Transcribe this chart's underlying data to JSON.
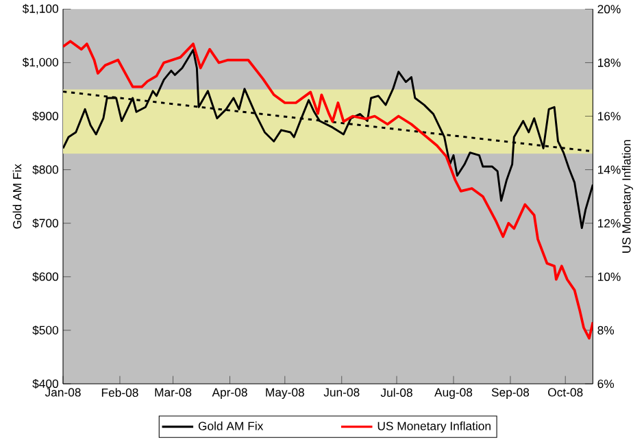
{
  "chart_data": {
    "type": "line",
    "ylabel": "Gold AM Fix",
    "y2label": "US Monetary Inflation",
    "xlim": [
      "2008-01-01",
      "2008-10-16"
    ],
    "xticks": [
      {
        "value": "2008-01-01",
        "label": "Jan-08"
      },
      {
        "value": "2008-02-01",
        "label": "Feb-08"
      },
      {
        "value": "2008-03-01",
        "label": "Mar-08"
      },
      {
        "value": "2008-04-01",
        "label": "Apr-08"
      },
      {
        "value": "2008-05-01",
        "label": "May-08"
      },
      {
        "value": "2008-06-01",
        "label": "Jun-08"
      },
      {
        "value": "2008-07-01",
        "label": "Jul-08"
      },
      {
        "value": "2008-08-01",
        "label": "Aug-08"
      },
      {
        "value": "2008-09-01",
        "label": "Sep-08"
      },
      {
        "value": "2008-10-01",
        "label": "Oct-08"
      }
    ],
    "ylim": [
      400,
      1100
    ],
    "yticks": [
      {
        "value": 400,
        "label": "$400"
      },
      {
        "value": 500,
        "label": "$500"
      },
      {
        "value": 600,
        "label": "$600"
      },
      {
        "value": 700,
        "label": "$700"
      },
      {
        "value": 800,
        "label": "$800"
      },
      {
        "value": 900,
        "label": "$900"
      },
      {
        "value": 1000,
        "label": "$1,000"
      },
      {
        "value": 1100,
        "label": "$1,100"
      }
    ],
    "y2lim": [
      6,
      20
    ],
    "y2ticks": [
      {
        "value": 6,
        "label": "6%"
      },
      {
        "value": 8,
        "label": "8%"
      },
      {
        "value": 10,
        "label": "10%"
      },
      {
        "value": 12,
        "label": "12%"
      },
      {
        "value": 14,
        "label": "14%"
      },
      {
        "value": 16,
        "label": "16%"
      },
      {
        "value": 18,
        "label": "18%"
      },
      {
        "value": 20,
        "label": "20%"
      }
    ],
    "bands": [
      {
        "axis": "y",
        "from": 830,
        "to": 950,
        "color": "#e8e8a4"
      }
    ],
    "legend": "bottom",
    "grid": false,
    "series": [
      {
        "name": "Gold AM Fix",
        "color": "#000000",
        "type": "line",
        "line_style": "solid",
        "x": [
          "2008-01-01",
          "2008-01-04",
          "2008-01-08",
          "2008-01-13",
          "2008-01-16",
          "2008-01-19",
          "2008-01-23",
          "2008-01-25",
          "2008-01-30",
          "2008-02-02",
          "2008-02-08",
          "2008-02-10",
          "2008-02-15",
          "2008-02-19",
          "2008-02-21",
          "2008-02-25",
          "2008-02-29",
          "2008-03-02",
          "2008-03-06",
          "2008-03-09",
          "2008-03-12",
          "2008-03-14",
          "2008-03-15",
          "2008-03-20",
          "2008-03-25",
          "2008-03-30",
          "2008-04-03",
          "2008-04-06",
          "2008-04-09",
          "2008-04-15",
          "2008-04-20",
          "2008-04-25",
          "2008-04-29",
          "2008-05-04",
          "2008-05-06",
          "2008-05-10",
          "2008-05-14",
          "2008-05-17",
          "2008-05-20",
          "2008-05-27",
          "2008-06-02",
          "2008-06-06",
          "2008-06-11",
          "2008-06-15",
          "2008-06-17",
          "2008-06-21",
          "2008-06-25",
          "2008-06-29",
          "2008-07-02",
          "2008-07-06",
          "2008-07-09",
          "2008-07-11",
          "2008-07-16",
          "2008-07-21",
          "2008-07-27",
          "2008-07-30",
          "2008-08-01",
          "2008-08-03",
          "2008-08-07",
          "2008-08-10",
          "2008-08-15",
          "2008-08-17",
          "2008-08-22",
          "2008-08-25",
          "2008-08-27",
          "2008-08-30",
          "2008-09-02",
          "2008-09-03",
          "2008-09-08",
          "2008-09-11",
          "2008-09-14",
          "2008-09-19",
          "2008-09-22",
          "2008-09-25",
          "2008-09-27",
          "2008-09-30",
          "2008-10-03",
          "2008-10-06",
          "2008-10-10",
          "2008-10-12",
          "2008-10-16"
        ],
        "values": [
          840,
          861,
          870,
          913,
          883,
          866,
          896,
          934,
          934,
          891,
          934,
          908,
          917,
          947,
          938,
          968,
          985,
          977,
          990,
          1007,
          1024,
          990,
          917,
          947,
          896,
          913,
          934,
          913,
          951,
          904,
          870,
          853,
          874,
          870,
          861,
          896,
          930,
          908,
          891,
          879,
          866,
          896,
          904,
          891,
          934,
          938,
          921,
          951,
          983,
          964,
          973,
          934,
          921,
          904,
          861,
          810,
          827,
          789,
          810,
          832,
          827,
          806,
          806,
          797,
          742,
          781,
          810,
          861,
          891,
          870,
          896,
          840,
          913,
          917,
          853,
          832,
          802,
          776,
          691,
          725,
          772
        ]
      },
      {
        "name": "US Monetary Inflation",
        "color": "#ff0000",
        "type": "line",
        "line_style": "solid",
        "axis": "y2",
        "x": [
          "2008-01-01",
          "2008-01-05",
          "2008-01-11",
          "2008-01-14",
          "2008-01-18",
          "2008-01-20",
          "2008-01-24",
          "2008-01-31",
          "2008-02-04",
          "2008-02-08",
          "2008-02-13",
          "2008-02-16",
          "2008-02-21",
          "2008-02-25",
          "2008-03-05",
          "2008-03-12",
          "2008-03-16",
          "2008-03-21",
          "2008-03-26",
          "2008-03-31",
          "2008-04-05",
          "2008-04-11",
          "2008-04-19",
          "2008-04-25",
          "2008-05-01",
          "2008-05-07",
          "2008-05-15",
          "2008-05-19",
          "2008-05-21",
          "2008-05-25",
          "2008-05-27",
          "2008-05-30",
          "2008-06-02",
          "2008-06-07",
          "2008-06-14",
          "2008-06-19",
          "2008-06-26",
          "2008-07-02",
          "2008-07-09",
          "2008-07-16",
          "2008-07-23",
          "2008-07-28",
          "2008-08-02",
          "2008-08-05",
          "2008-08-11",
          "2008-08-17",
          "2008-08-24",
          "2008-08-28",
          "2008-08-31",
          "2008-09-03",
          "2008-09-09",
          "2008-09-14",
          "2008-09-16",
          "2008-09-21",
          "2008-09-25",
          "2008-09-26",
          "2008-09-29",
          "2008-10-02",
          "2008-10-06",
          "2008-10-09",
          "2008-10-11",
          "2008-10-14",
          "2008-10-16"
        ],
        "values": [
          18.6,
          18.8,
          18.5,
          18.7,
          18.1,
          17.6,
          17.9,
          18.1,
          17.6,
          17.1,
          17.1,
          17.3,
          17.5,
          18.0,
          18.2,
          18.7,
          17.8,
          18.5,
          18.0,
          18.1,
          18.1,
          18.1,
          17.4,
          16.8,
          16.5,
          16.5,
          16.9,
          16.1,
          16.8,
          16.1,
          15.8,
          16.5,
          15.8,
          16.0,
          15.9,
          16.0,
          15.7,
          16.0,
          15.7,
          15.3,
          14.9,
          14.5,
          13.6,
          13.2,
          13.3,
          13.0,
          12.1,
          11.5,
          12.0,
          11.8,
          12.7,
          12.3,
          11.4,
          10.5,
          10.4,
          9.9,
          10.4,
          9.9,
          9.5,
          8.7,
          8.1,
          7.7,
          8.3
        ]
      },
      {
        "color": "#000000",
        "type": "line",
        "line_style": "dashed",
        "x": [
          "2008-01-01",
          "2008-10-14"
        ],
        "values": [
          946,
          835
        ]
      }
    ]
  }
}
